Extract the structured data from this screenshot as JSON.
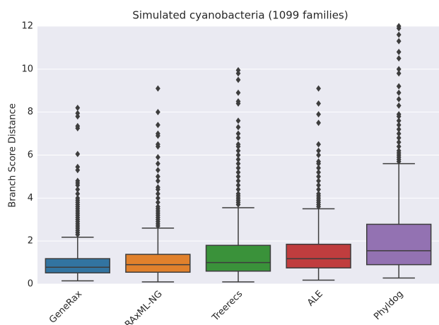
{
  "chart_data": {
    "type": "box",
    "title": "Simulated cyanobacteria (1099 families)",
    "y_label": "Branch Score Distance",
    "categories": [
      "GeneRax",
      "RAxML-NG",
      "Treerecs",
      "ALE",
      "Phyldog"
    ],
    "colors": [
      "#3274a1",
      "#e1812c",
      "#3a923a",
      "#c03d3e",
      "#9372b2"
    ],
    "boxes": [
      {
        "min": 0.15,
        "q1": 0.52,
        "median": 0.78,
        "q3": 1.18,
        "max": 2.18,
        "outliers": [
          2.3,
          2.4,
          2.5,
          2.6,
          2.7,
          2.8,
          2.9,
          3.0,
          3.1,
          3.2,
          3.3,
          3.4,
          3.5,
          3.6,
          3.7,
          3.8,
          3.9,
          4.0,
          4.2,
          4.4,
          4.6,
          4.7,
          4.8,
          5.3,
          5.45,
          6.05,
          7.25,
          7.35,
          7.8,
          7.95,
          8.2
        ]
      },
      {
        "min": 0.1,
        "q1": 0.55,
        "median": 0.9,
        "q3": 1.38,
        "max": 2.6,
        "outliers": [
          2.7,
          2.8,
          2.9,
          3.0,
          3.1,
          3.2,
          3.3,
          3.4,
          3.5,
          3.6,
          3.8,
          4.0,
          4.2,
          4.4,
          4.5,
          4.8,
          5.0,
          5.3,
          5.6,
          5.9,
          6.4,
          6.5,
          6.9,
          7.0,
          7.4,
          8.0,
          9.1
        ]
      },
      {
        "min": 0.1,
        "q1": 0.6,
        "median": 1.0,
        "q3": 1.8,
        "max": 3.55,
        "outliers": [
          3.7,
          3.8,
          3.9,
          4.0,
          4.1,
          4.2,
          4.4,
          4.6,
          4.8,
          5.0,
          5.2,
          5.4,
          5.6,
          5.8,
          6.0,
          6.2,
          6.4,
          6.5,
          6.8,
          7.0,
          7.3,
          7.6,
          8.4,
          8.5,
          8.9,
          9.5,
          9.8,
          9.95
        ]
      },
      {
        "min": 0.18,
        "q1": 0.75,
        "median": 1.18,
        "q3": 1.85,
        "max": 3.5,
        "outliers": [
          3.6,
          3.7,
          3.8,
          3.9,
          4.0,
          4.1,
          4.2,
          4.4,
          4.6,
          4.8,
          5.0,
          5.2,
          5.4,
          5.6,
          5.7,
          6.0,
          6.2,
          6.5,
          7.5,
          7.9,
          8.4,
          9.1
        ]
      },
      {
        "min": 0.28,
        "q1": 0.9,
        "median": 1.55,
        "q3": 2.78,
        "max": 5.6,
        "outliers": [
          5.7,
          5.8,
          5.9,
          6.0,
          6.1,
          6.2,
          6.4,
          6.6,
          6.8,
          7.0,
          7.2,
          7.4,
          7.6,
          7.8,
          7.9,
          8.3,
          8.6,
          8.9,
          9.2,
          9.8,
          10.0,
          10.5,
          10.8,
          11.3,
          11.6,
          11.9,
          12.0
        ]
      }
    ],
    "ylim": [
      0,
      12
    ],
    "yticks": [
      0,
      2,
      4,
      6,
      8,
      10,
      12
    ],
    "grid": true
  }
}
